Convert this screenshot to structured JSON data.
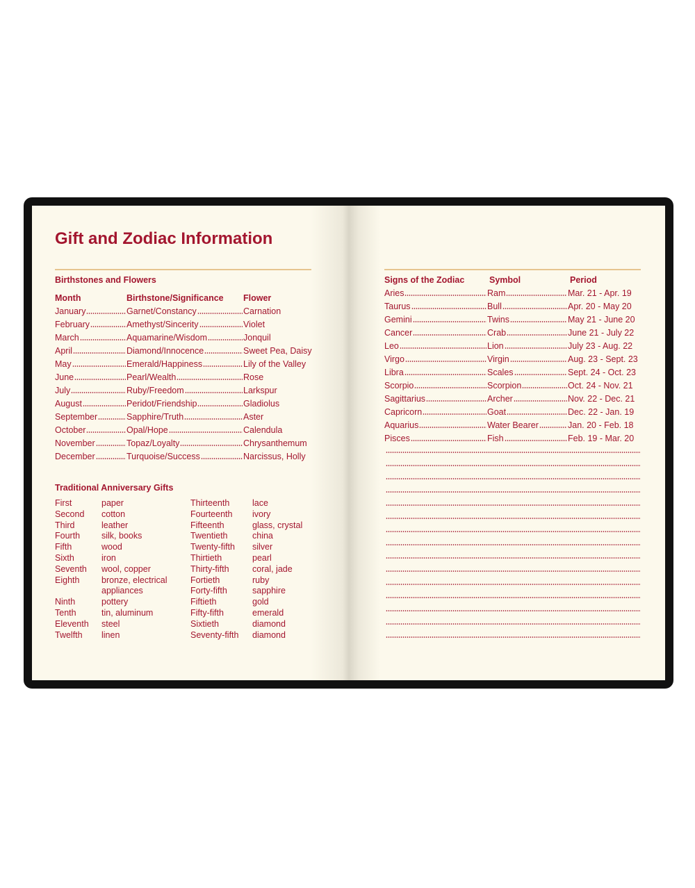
{
  "title": "Gift and Zodiac Information",
  "birthstones": {
    "heading": "Birthstones and Flowers",
    "columns": [
      "Month",
      "Birthstone/Significance",
      "Flower"
    ],
    "rows": [
      [
        "January",
        "Garnet/Constancy",
        "Carnation"
      ],
      [
        "February",
        "Amethyst/Sincerity",
        "Violet"
      ],
      [
        "March",
        "Aquamarine/Wisdom",
        "Jonquil"
      ],
      [
        "April",
        "Diamond/Innocence",
        "Sweet Pea, Daisy"
      ],
      [
        "May",
        "Emerald/Happiness",
        "Lily of the Valley"
      ],
      [
        "June",
        "Pearl/Wealth",
        "Rose"
      ],
      [
        "July",
        "Ruby/Freedom",
        "Larkspur"
      ],
      [
        "August",
        "Peridot/Friendship",
        "Gladiolus"
      ],
      [
        "September",
        "Sapphire/Truth",
        "Aster"
      ],
      [
        "October",
        "Opal/Hope",
        "Calendula"
      ],
      [
        "November",
        "Topaz/Loyalty",
        "Chrysanthemum"
      ],
      [
        "December",
        "Turquoise/Success",
        "Narcissus, Holly"
      ]
    ]
  },
  "anniversary": {
    "heading": "Traditional Anniversary Gifts",
    "left": [
      [
        "First",
        "paper"
      ],
      [
        "Second",
        "cotton"
      ],
      [
        "Third",
        "leather"
      ],
      [
        "Fourth",
        "silk, books"
      ],
      [
        "Fifth",
        "wood"
      ],
      [
        "Sixth",
        "iron"
      ],
      [
        "Seventh",
        "wool, copper"
      ],
      [
        "Eighth",
        "bronze, electrical appliances"
      ],
      [
        "Ninth",
        "pottery"
      ],
      [
        "Tenth",
        "tin, aluminum"
      ],
      [
        "Eleventh",
        "steel"
      ],
      [
        "Twelfth",
        "linen"
      ]
    ],
    "right": [
      [
        "Thirteenth",
        "lace"
      ],
      [
        "Fourteenth",
        "ivory"
      ],
      [
        "Fifteenth",
        "glass, crystal"
      ],
      [
        "Twentieth",
        "china"
      ],
      [
        "Twenty-fifth",
        "silver"
      ],
      [
        "Thirtieth",
        "pearl"
      ],
      [
        "Thirty-fifth",
        "coral, jade"
      ],
      [
        "Fortieth",
        "ruby"
      ],
      [
        "Forty-fifth",
        "sapphire"
      ],
      [
        "Fiftieth",
        "gold"
      ],
      [
        "Fifty-fifth",
        "emerald"
      ],
      [
        "Sixtieth",
        "diamond"
      ],
      [
        "Seventy-fifth",
        "diamond"
      ]
    ]
  },
  "zodiac": {
    "columns": [
      "Signs of the Zodiac",
      "Symbol",
      "Period"
    ],
    "rows": [
      [
        "Aries",
        "Ram",
        "Mar. 21 - Apr. 19"
      ],
      [
        "Taurus",
        "Bull",
        "Apr. 20 - May 20"
      ],
      [
        "Gemini",
        "Twins",
        "May 21 - June 20"
      ],
      [
        "Cancer",
        "Crab",
        "June 21 - July 22"
      ],
      [
        "Leo",
        "Lion",
        "July 23 - Aug. 22"
      ],
      [
        "Virgo",
        "Virgin",
        "Aug. 23 - Sept. 23"
      ],
      [
        "Libra",
        "Scales",
        "Sept. 24 - Oct. 23"
      ],
      [
        "Scorpio",
        "Scorpion",
        "Oct. 24 - Nov. 21"
      ],
      [
        "Sagittarius",
        "Archer",
        "Nov. 22 - Dec. 21"
      ],
      [
        "Capricorn",
        "Goat",
        "Dec. 22 - Jan. 19"
      ],
      [
        "Aquarius",
        "Water Bearer",
        "Jan. 20 - Feb. 18"
      ],
      [
        "Pisces",
        "Fish",
        "Feb. 19 - Mar. 20"
      ]
    ]
  }
}
